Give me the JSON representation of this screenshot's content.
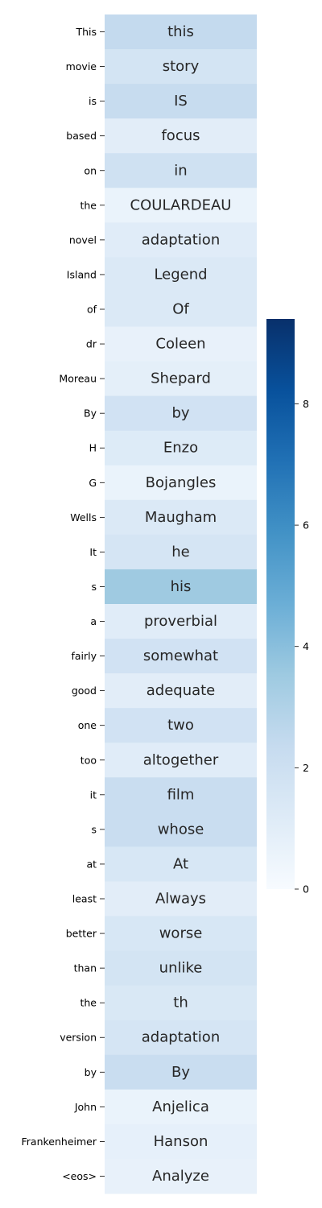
{
  "chart_data": {
    "type": "heatmap",
    "title": "",
    "xlabel": "",
    "ylabel": "",
    "rows": [
      "This",
      "movie",
      "is",
      "based",
      "on",
      "the",
      "novel",
      "Island",
      "of",
      "dr",
      "Moreau",
      "By",
      "H",
      "G",
      "Wells",
      "It",
      "s",
      "a",
      "fairly",
      "good",
      "one",
      "too",
      "it",
      "s",
      "at",
      "least",
      "better",
      "than",
      "the",
      "version",
      "by",
      "John",
      "Frankenheimer",
      "<eos>"
    ],
    "cell_text": [
      "this",
      "story",
      "IS",
      "focus",
      "in",
      "COULARDEAU",
      "adaptation",
      "Legend",
      "Of",
      "Coleen",
      "Shepard",
      "by",
      "Enzo",
      "Bojangles",
      "Maugham",
      "he",
      "his",
      "proverbial",
      "somewhat",
      "adequate",
      "two",
      "altogether",
      "film",
      "whose",
      "At",
      "Always",
      "worse",
      "unlike",
      "th",
      "adaptation",
      "By",
      "Anjelica",
      "Hanson",
      "Analyze"
    ],
    "values": [
      2.4,
      1.7,
      2.3,
      1.0,
      1.9,
      0.6,
      1.1,
      1.3,
      1.3,
      0.7,
      0.9,
      1.8,
      1.2,
      0.6,
      1.3,
      1.6,
      3.5,
      1.1,
      1.8,
      1.0,
      1.8,
      1.1,
      2.2,
      2.2,
      1.5,
      1.0,
      1.5,
      1.7,
      1.4,
      1.6,
      2.2,
      0.6,
      0.8,
      0.7
    ],
    "colorbar": {
      "min": 0,
      "max": 9.4,
      "ticks": [
        0,
        2,
        4,
        6,
        8
      ],
      "colormap": "Blues"
    }
  }
}
